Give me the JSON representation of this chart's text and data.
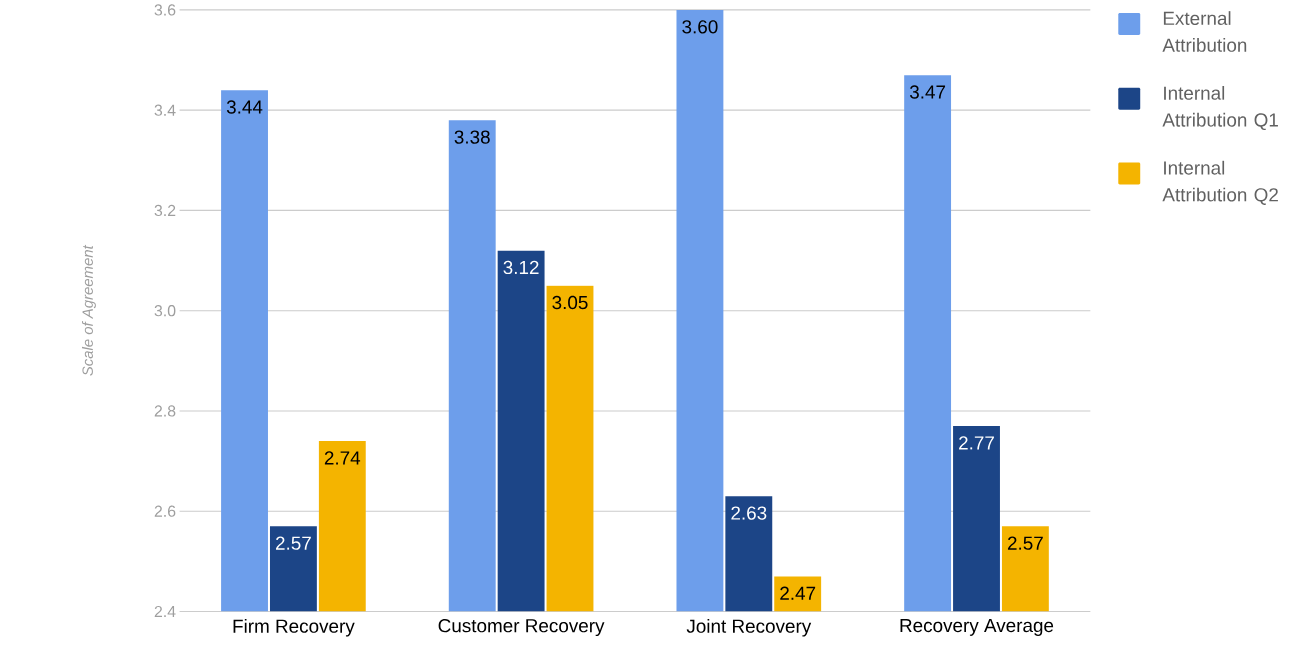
{
  "chart_data": {
    "type": "bar",
    "ylabel": "Scale of Agreement",
    "categories": [
      "Firm Recovery",
      "Customer Recovery",
      "Joint Recovery",
      "Recovery Average"
    ],
    "series": [
      {
        "name": "External Attribution",
        "color": "#6d9eeb",
        "values": [
          3.44,
          3.38,
          3.6,
          3.47
        ],
        "value_labels": [
          "3.44",
          "3.38",
          "3.60",
          "3.47"
        ]
      },
      {
        "name": "Internal Attribution Q1",
        "color": "#1c4587",
        "values": [
          2.57,
          3.12,
          2.63,
          2.77
        ],
        "value_labels": [
          "2.57",
          "3.12",
          "2.63",
          "2.77"
        ]
      },
      {
        "name": "Internal Attribution Q2",
        "color": "#f4b400",
        "values": [
          2.74,
          3.05,
          2.47,
          2.57
        ],
        "value_labels": [
          "2.74",
          "3.05",
          "2.47",
          "2.57"
        ]
      }
    ],
    "ylim": [
      2.4,
      3.6
    ],
    "yticks": [
      2.4,
      2.6,
      2.8,
      {
        "value": 3.0,
        "label": "3.0"
      },
      3.2,
      3.4,
      3.6
    ],
    "grid": "y",
    "legend": "top right"
  }
}
